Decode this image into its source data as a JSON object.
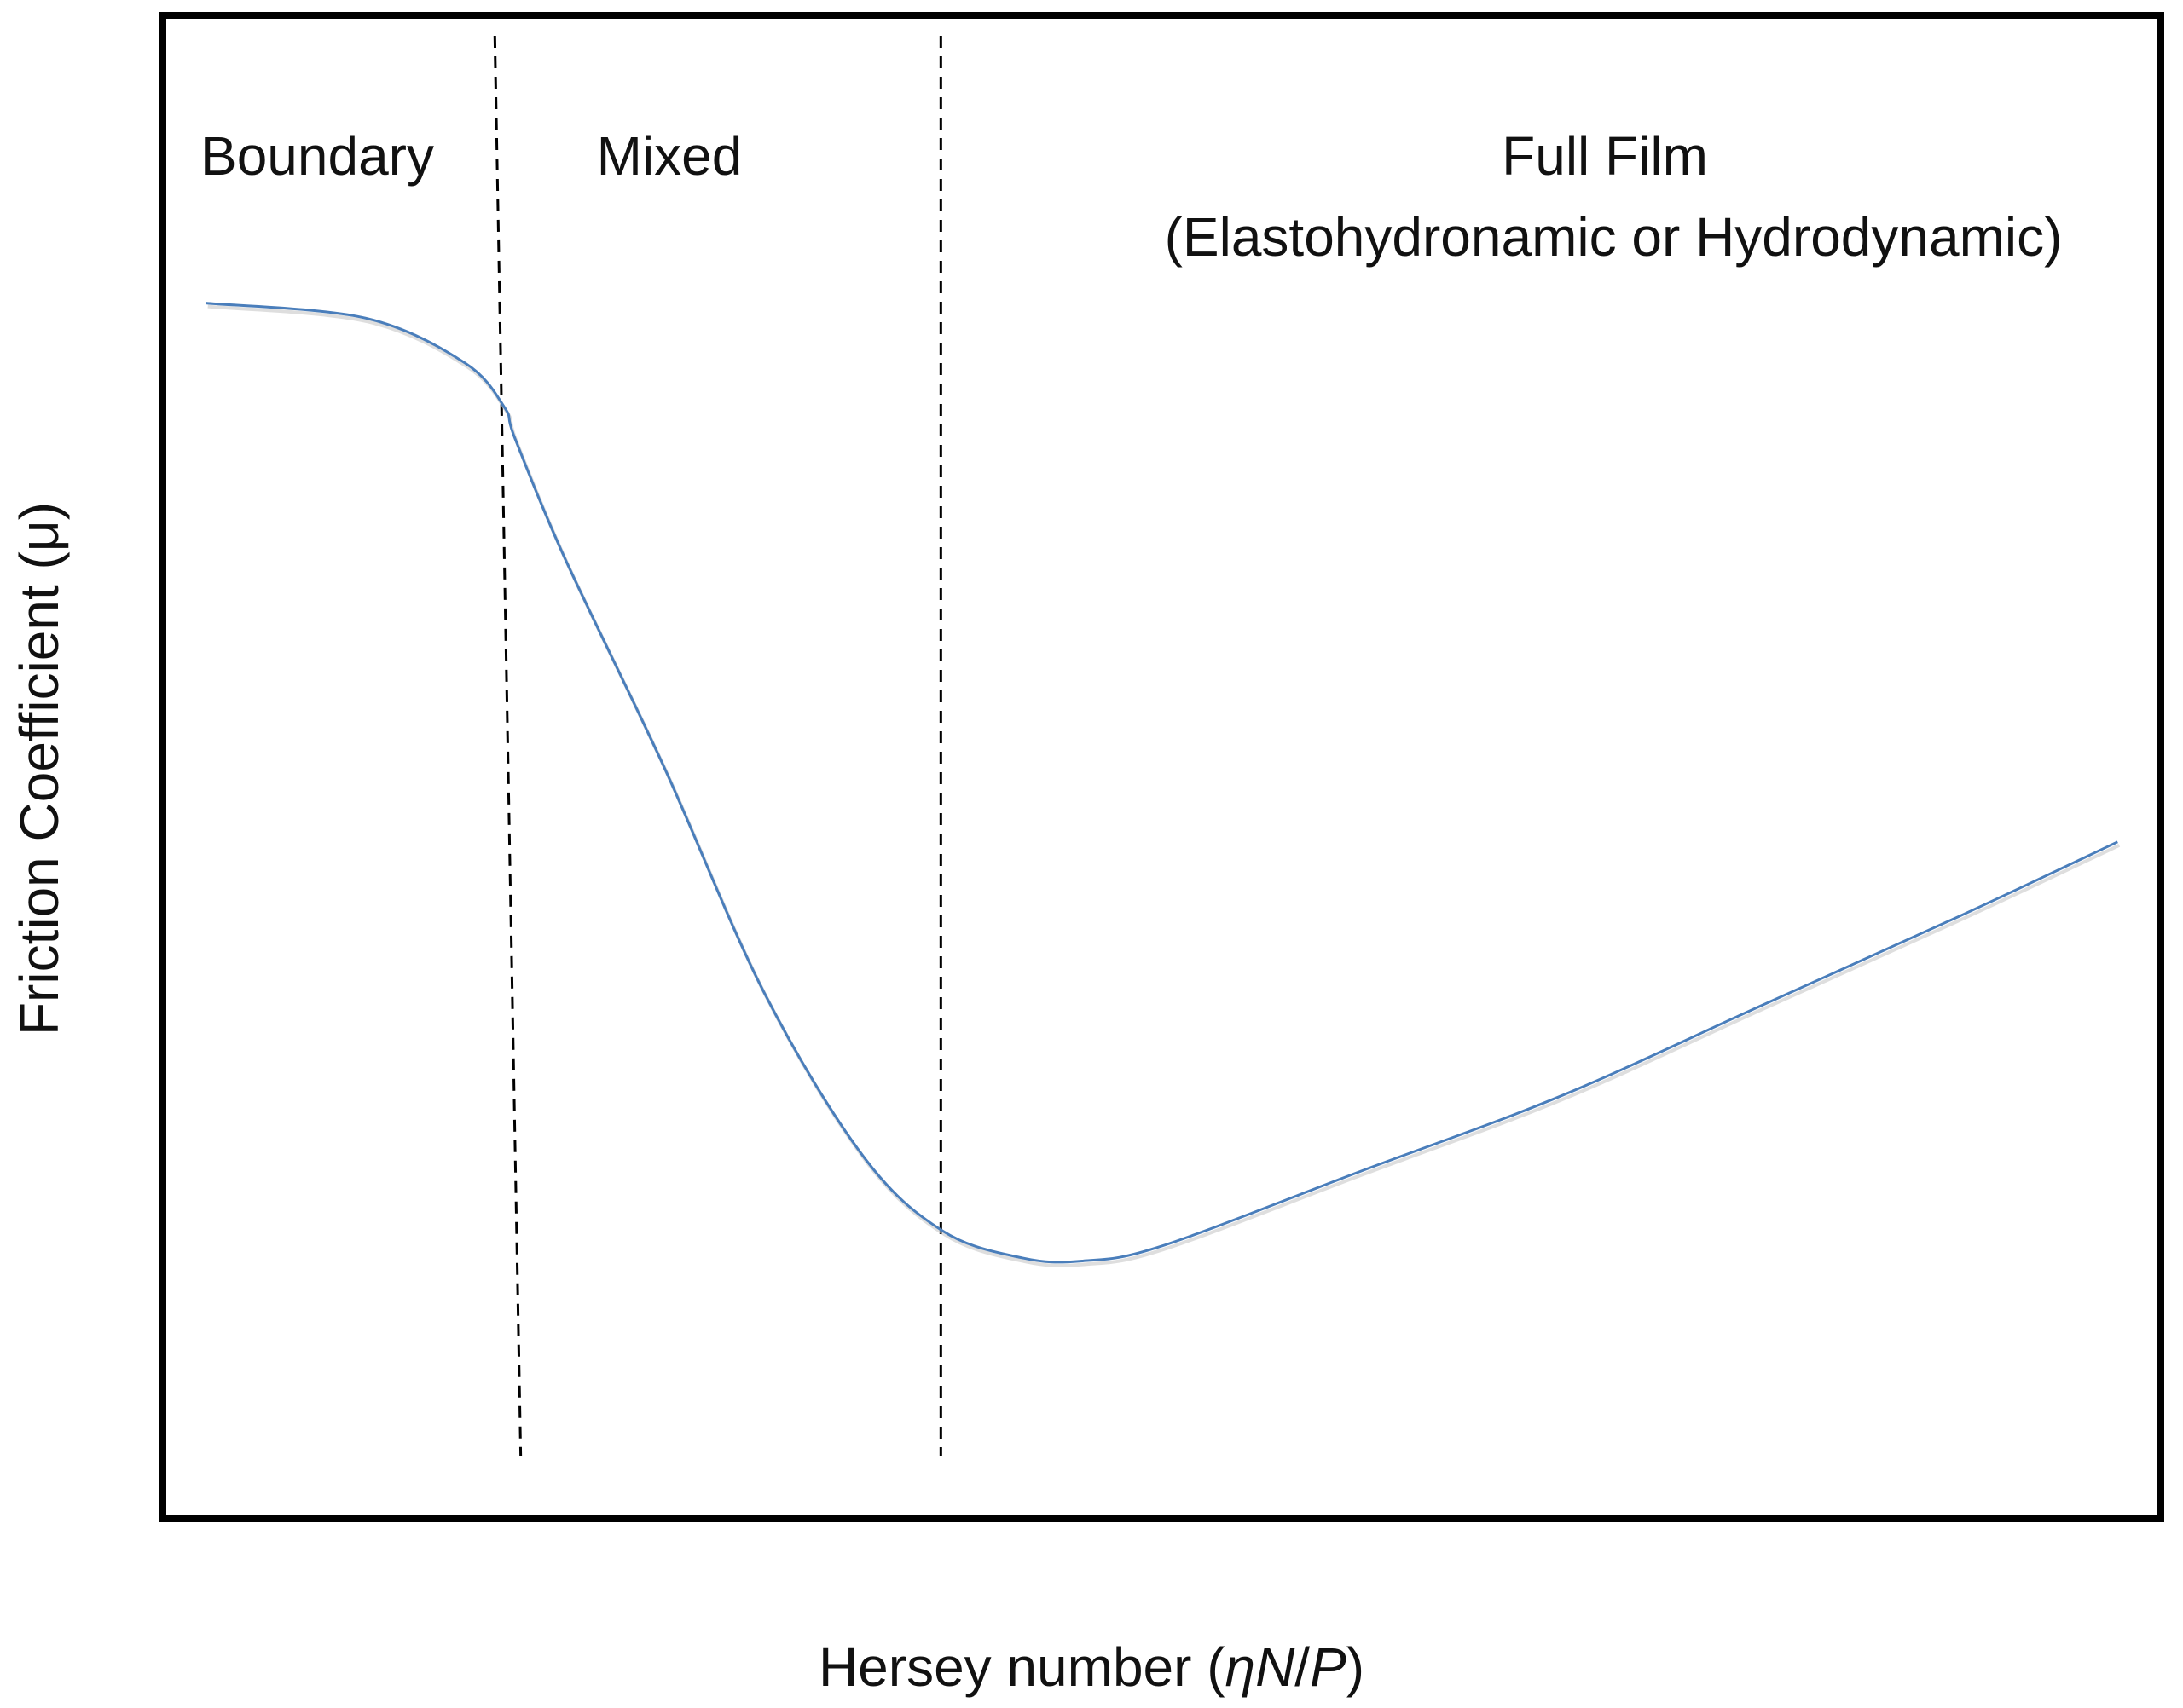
{
  "chart_data": {
    "type": "line",
    "title": "",
    "xlabel": {
      "prefix": "Hersey number (",
      "symbol1": "η",
      "symbol2": "N",
      "slash": "/",
      "symbol3": "P",
      "suffix": ")"
    },
    "ylabel": "Friction Coefficient (μ)",
    "xticks": [],
    "yticks": [],
    "grid": false,
    "legend": "none",
    "regions": [
      {
        "label": "Boundary"
      },
      {
        "label": "Mixed"
      },
      {
        "label": "Full Film",
        "sublabel": "(Elastohydronamic or Hydrodynamic)"
      }
    ],
    "series": [
      {
        "color": "#4a7ebb",
        "points": [
          [
            0.02,
            0.81
          ],
          [
            0.1,
            0.8
          ],
          [
            0.15,
            0.77
          ],
          [
            0.17,
            0.74
          ],
          [
            0.175,
            0.72
          ],
          [
            0.2,
            0.64
          ],
          [
            0.25,
            0.5
          ],
          [
            0.3,
            0.35
          ],
          [
            0.35,
            0.24
          ],
          [
            0.39,
            0.19
          ],
          [
            0.43,
            0.172
          ],
          [
            0.46,
            0.17
          ],
          [
            0.5,
            0.18
          ],
          [
            0.6,
            0.23
          ],
          [
            0.7,
            0.28
          ],
          [
            0.8,
            0.34
          ],
          [
            0.9,
            0.4
          ],
          [
            0.98,
            0.45
          ]
        ]
      }
    ],
    "dividers": [
      {
        "x_top": 0.165,
        "x_bottom": 0.178,
        "style": "dashed"
      },
      {
        "x_top": 0.389,
        "x_bottom": 0.389,
        "style": "dashed"
      }
    ],
    "xlim": [
      0,
      1
    ],
    "ylim": [
      0,
      1
    ]
  }
}
